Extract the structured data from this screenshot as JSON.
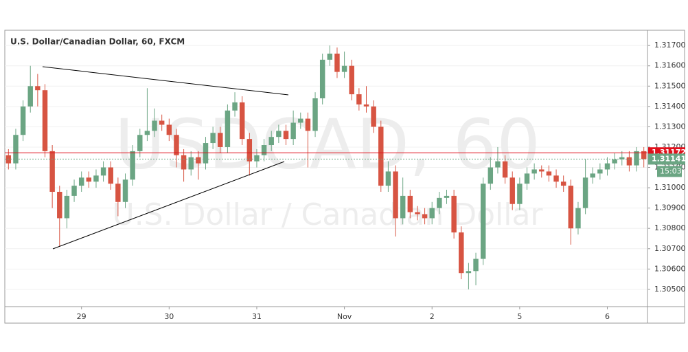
{
  "chart_data": {
    "type": "candlestick",
    "title": "U.S. Dollar/Canadian Dollar, 60, FXCM",
    "watermark": "USDCAD, 60",
    "watermark_subtitle": "U.S. Dollar / Canadian Dollar",
    "categories": [
      null,
      null,
      null,
      null,
      null,
      null,
      null,
      null,
      null,
      null,
      "29",
      null,
      null,
      null,
      null,
      null,
      null,
      null,
      null,
      null,
      null,
      null,
      "30",
      null,
      null,
      null,
      null,
      null,
      null,
      null,
      null,
      null,
      null,
      null,
      "31",
      null,
      null,
      null,
      null,
      null,
      null,
      null,
      null,
      null,
      null,
      null,
      "Nov",
      null,
      null,
      null,
      null,
      null,
      null,
      null,
      null,
      null,
      null,
      null,
      "2",
      null,
      null,
      null,
      null,
      null,
      null,
      null,
      null,
      null,
      null,
      null,
      "5",
      null,
      null,
      null,
      null,
      null,
      null,
      null,
      null,
      null,
      null,
      null,
      "6",
      null,
      null,
      null,
      null,
      null
    ],
    "open": [
      1.3116,
      1.3112,
      1.3126,
      1.314,
      1.315,
      1.3148,
      1.3118,
      1.3098,
      1.3085,
      1.3096,
      1.3101,
      1.3105,
      1.3103,
      1.3106,
      1.311,
      1.3102,
      1.3093,
      1.3104,
      1.3118,
      1.3126,
      1.3128,
      1.3133,
      1.3131,
      1.3126,
      1.3116,
      1.3109,
      1.3115,
      1.3112,
      1.3122,
      1.3127,
      1.312,
      1.3138,
      1.3142,
      1.3124,
      1.3113,
      1.3116,
      1.3121,
      1.3125,
      1.3128,
      1.3124,
      1.3132,
      1.3134,
      1.3128,
      1.3144,
      1.3163,
      1.3166,
      1.3157,
      1.316,
      1.3146,
      1.3141,
      1.314,
      1.313,
      1.3101,
      1.3108,
      1.3085,
      1.3096,
      1.3088,
      1.3087,
      1.3085,
      1.309,
      1.3095,
      1.3096,
      1.3078,
      1.3058,
      1.3059,
      1.3065,
      1.3102,
      1.311,
      1.3113,
      1.3105,
      1.3092,
      1.3102,
      1.3107,
      1.3109,
      1.3108,
      1.3106,
      1.3103,
      1.3101,
      1.308,
      1.309,
      1.3105,
      1.3107,
      1.3109,
      1.3112,
      1.3114,
      1.3115,
      1.3111,
      1.3118
    ],
    "high": [
      1.3119,
      1.3129,
      1.3143,
      1.316,
      1.3156,
      1.3151,
      1.3121,
      1.3101,
      1.3099,
      1.3104,
      1.3108,
      1.3108,
      1.3109,
      1.3113,
      1.3113,
      1.3105,
      1.3107,
      1.3121,
      1.3129,
      1.3149,
      1.3139,
      1.3136,
      1.3134,
      1.3129,
      1.3119,
      1.3118,
      1.3118,
      1.3125,
      1.313,
      1.313,
      1.3141,
      1.3147,
      1.3145,
      1.3127,
      1.3119,
      1.3124,
      1.3128,
      1.3131,
      1.3131,
      1.3138,
      1.3137,
      1.3137,
      1.3147,
      1.3166,
      1.317,
      1.3169,
      1.3167,
      1.3163,
      1.3149,
      1.315,
      1.3143,
      1.3133,
      1.3113,
      1.3111,
      1.3105,
      1.3099,
      1.3091,
      1.309,
      1.3093,
      1.3098,
      1.3099,
      1.3099,
      1.3081,
      1.3063,
      1.3068,
      1.3105,
      1.3115,
      1.312,
      1.3116,
      1.3108,
      1.3105,
      1.311,
      1.3112,
      1.3111,
      1.3111,
      1.3109,
      1.3106,
      1.3104,
      1.3093,
      1.3114,
      1.311,
      1.3112,
      1.3115,
      1.3117,
      1.3118,
      1.3118,
      1.312,
      1.312
    ],
    "low": [
      1.3109,
      1.3109,
      1.3123,
      1.3137,
      1.314,
      1.3115,
      1.309,
      1.3071,
      1.308,
      1.3093,
      1.3098,
      1.31,
      1.31,
      1.3103,
      1.3099,
      1.3086,
      1.309,
      1.3101,
      1.3115,
      1.3123,
      1.3125,
      1.3128,
      1.3123,
      1.311,
      1.3103,
      1.3106,
      1.3104,
      1.3109,
      1.3119,
      1.3117,
      1.3117,
      1.3135,
      1.3121,
      1.3106,
      1.311,
      1.3113,
      1.3118,
      1.3122,
      1.3121,
      1.3121,
      1.3129,
      1.311,
      1.3125,
      1.3141,
      1.316,
      1.3154,
      1.3154,
      1.3143,
      1.3138,
      1.3137,
      1.3127,
      1.3098,
      1.3098,
      1.3076,
      1.3082,
      1.3085,
      1.3084,
      1.3082,
      1.3082,
      1.3087,
      1.3092,
      1.3075,
      1.3055,
      1.305,
      1.3052,
      1.3062,
      1.3099,
      1.3107,
      1.3102,
      1.3089,
      1.3089,
      1.3099,
      1.3104,
      1.3105,
      1.3103,
      1.31,
      1.3098,
      1.3072,
      1.3077,
      1.3087,
      1.3102,
      1.3104,
      1.3106,
      1.3109,
      1.3111,
      1.3108,
      1.3108,
      1.311
    ],
    "close": [
      1.3112,
      1.3126,
      1.314,
      1.315,
      1.3148,
      1.3118,
      1.3098,
      1.3085,
      1.3096,
      1.3101,
      1.3105,
      1.3103,
      1.3106,
      1.311,
      1.3102,
      1.3093,
      1.3104,
      1.3118,
      1.3126,
      1.3128,
      1.3133,
      1.3131,
      1.3126,
      1.3116,
      1.3109,
      1.3115,
      1.3112,
      1.3122,
      1.3127,
      1.312,
      1.3138,
      1.3142,
      1.3124,
      1.3113,
      1.3116,
      1.3121,
      1.3125,
      1.3128,
      1.3124,
      1.3132,
      1.3134,
      1.3128,
      1.3144,
      1.3163,
      1.3166,
      1.3157,
      1.316,
      1.3146,
      1.3141,
      1.314,
      1.313,
      1.3101,
      1.3108,
      1.3085,
      1.3096,
      1.3088,
      1.3087,
      1.3085,
      1.309,
      1.3095,
      1.3096,
      1.3078,
      1.3058,
      1.3059,
      1.3065,
      1.3102,
      1.311,
      1.3113,
      1.3105,
      1.3092,
      1.3102,
      1.3107,
      1.3109,
      1.3108,
      1.3106,
      1.3103,
      1.3101,
      1.308,
      1.309,
      1.3105,
      1.3107,
      1.3109,
      1.3112,
      1.3114,
      1.3115,
      1.3111,
      1.3118,
      1.31141
    ],
    "up_color": "#6ba583",
    "down_color": "#d75442",
    "hline": {
      "value": 1.31172,
      "color": "#e0101b"
    },
    "countdown": "15:03",
    "ylim": [
      1.30415,
      1.31775
    ],
    "yticks": [
      {
        "value": 1.305,
        "label": "1.30500"
      },
      {
        "value": 1.306,
        "label": "1.30600"
      },
      {
        "value": 1.307,
        "label": "1.30700"
      },
      {
        "value": 1.308,
        "label": "1.30800"
      },
      {
        "value": 1.309,
        "label": "1.30900"
      },
      {
        "value": 1.31,
        "label": "1.31000"
      },
      {
        "value": 1.311,
        "label": "1.31100"
      },
      {
        "value": 1.312,
        "label": "1.31200"
      },
      {
        "value": 1.313,
        "label": "1.31300"
      },
      {
        "value": 1.314,
        "label": "1.31400"
      },
      {
        "value": 1.315,
        "label": "1.31500"
      },
      {
        "value": 1.316,
        "label": "1.31600"
      },
      {
        "value": 1.317,
        "label": "1.31700"
      }
    ],
    "grid": true
  }
}
